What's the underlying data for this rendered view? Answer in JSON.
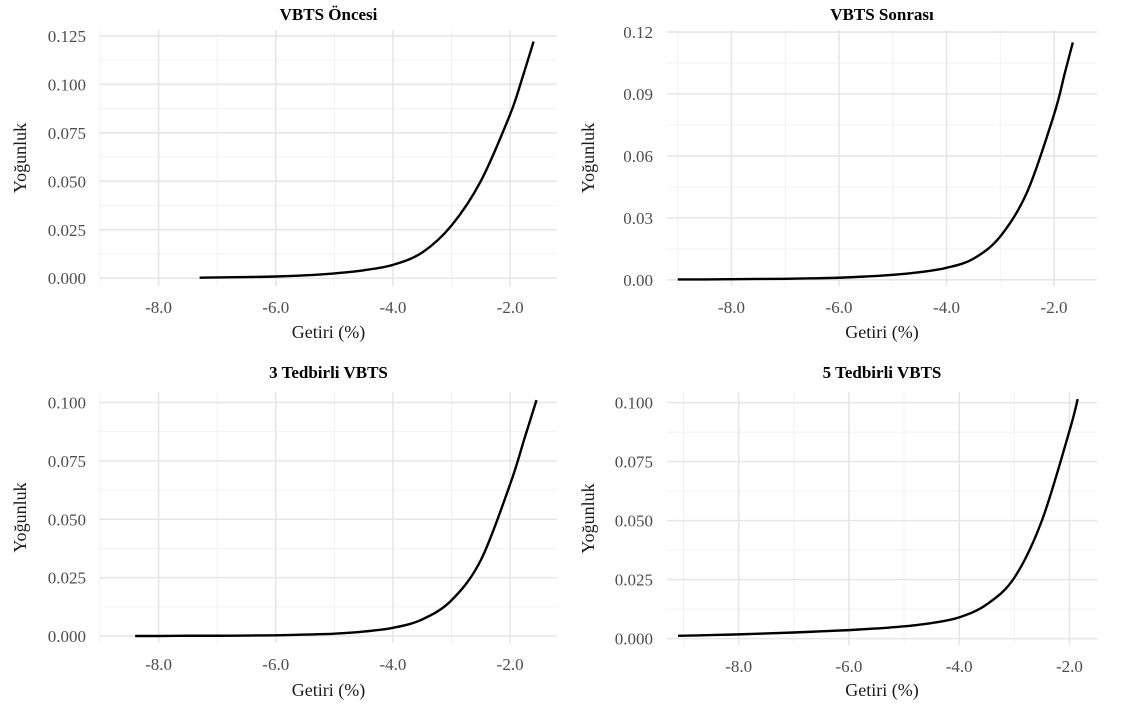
{
  "chart_data": [
    {
      "type": "line",
      "title": "VBTS Öncesi",
      "xlabel": "Getiri (%)",
      "ylabel": "Yoğunluk",
      "xlim": [
        -9.0,
        -1.2
      ],
      "ylim": [
        -0.004,
        0.128
      ],
      "xticks": [
        -8.0,
        -6.0,
        -4.0,
        -2.0
      ],
      "xtick_labels": [
        "-8.0",
        "-6.0",
        "-4.0",
        "-2.0"
      ],
      "yticks": [
        0.0,
        0.025,
        0.05,
        0.075,
        0.1,
        0.125
      ],
      "ytick_labels": [
        "0.000",
        "0.025",
        "0.050",
        "0.075",
        "0.100",
        "0.125"
      ],
      "grid": true,
      "legend": "none",
      "series": [
        {
          "color": "#000000",
          "x": [
            -7.3,
            -7.0,
            -6.5,
            -6.0,
            -5.5,
            -5.0,
            -4.5,
            -4.0,
            -3.5,
            -3.0,
            -2.5,
            -2.0,
            -1.8,
            -1.6
          ],
          "y": [
            0.0003,
            0.0004,
            0.0006,
            0.0009,
            0.0015,
            0.0025,
            0.0041,
            0.0069,
            0.0133,
            0.0272,
            0.0501,
            0.0845,
            0.1025,
            0.122
          ]
        }
      ]
    },
    {
      "type": "line",
      "title": "VBTS Sonrası",
      "xlabel": "Getiri (%)",
      "ylabel": "Yoğunluk",
      "xlim": [
        -9.2,
        -1.2
      ],
      "ylim": [
        -0.003,
        0.121
      ],
      "xticks": [
        -8.0,
        -6.0,
        -4.0,
        -2.0
      ],
      "xtick_labels": [
        "-8.0",
        "-6.0",
        "-4.0",
        "-2.0"
      ],
      "yticks": [
        0.0,
        0.03,
        0.06,
        0.09,
        0.12
      ],
      "ytick_labels": [
        "0.00",
        "0.03",
        "0.06",
        "0.09",
        "0.12"
      ],
      "grid": true,
      "legend": "none",
      "series": [
        {
          "color": "#000000",
          "x": [
            -9.0,
            -8.5,
            -8.0,
            -7.5,
            -7.0,
            -6.5,
            -6.0,
            -5.5,
            -5.0,
            -4.5,
            -4.0,
            -3.5,
            -3.0,
            -2.5,
            -2.0,
            -1.8,
            -1.65
          ],
          "y": [
            0.0002,
            0.0002,
            0.0003,
            0.0004,
            0.0005,
            0.0007,
            0.001,
            0.0016,
            0.0024,
            0.0037,
            0.0058,
            0.0102,
            0.021,
            0.0425,
            0.08,
            0.1,
            0.115
          ]
        }
      ]
    },
    {
      "type": "line",
      "title": "3 Tedbirli VBTS",
      "xlabel": "Getiri (%)",
      "ylabel": "Yoğunluk",
      "xlim": [
        -9.0,
        -1.2
      ],
      "ylim": [
        -0.003,
        0.1045
      ],
      "xticks": [
        -8.0,
        -6.0,
        -4.0,
        -2.0
      ],
      "xtick_labels": [
        "-8.0",
        "-6.0",
        "-4.0",
        "-2.0"
      ],
      "yticks": [
        0.0,
        0.025,
        0.05,
        0.075,
        0.1
      ],
      "ytick_labels": [
        "0.000",
        "0.025",
        "0.050",
        "0.075",
        "0.100"
      ],
      "grid": true,
      "legend": "none",
      "series": [
        {
          "color": "#000000",
          "x": [
            -8.4,
            -8.0,
            -7.5,
            -7.0,
            -6.5,
            -6.0,
            -5.5,
            -5.0,
            -4.5,
            -4.0,
            -3.5,
            -3.0,
            -2.5,
            -2.0,
            -1.75,
            -1.55
          ],
          "y": [
            0.0,
            0.0,
            0.0001,
            0.0001,
            0.0002,
            0.0003,
            0.0006,
            0.001,
            0.0019,
            0.0035,
            0.0071,
            0.0153,
            0.0325,
            0.065,
            0.085,
            0.101
          ]
        }
      ]
    },
    {
      "type": "line",
      "title": "5 Tedbirli VBTS",
      "xlabel": "Getiri (%)",
      "ylabel": "Yoğunluk",
      "xlim": [
        -9.3,
        -1.5
      ],
      "ylim": [
        -0.0027,
        0.1045
      ],
      "xticks": [
        -8.0,
        -6.0,
        -4.0,
        -2.0
      ],
      "xtick_labels": [
        "-8.0",
        "-6.0",
        "-4.0",
        "-2.0"
      ],
      "yticks": [
        0.0,
        0.025,
        0.05,
        0.075,
        0.1
      ],
      "ytick_labels": [
        "0.000",
        "0.025",
        "0.050",
        "0.075",
        "0.100"
      ],
      "grid": true,
      "legend": "none",
      "series": [
        {
          "color": "#000000",
          "x": [
            -9.1,
            -8.5,
            -8.0,
            -7.5,
            -7.0,
            -6.5,
            -6.0,
            -5.5,
            -5.0,
            -4.5,
            -4.0,
            -3.5,
            -3.0,
            -2.5,
            -2.0,
            -1.85
          ],
          "y": [
            0.0012,
            0.0015,
            0.0018,
            0.0022,
            0.0026,
            0.0031,
            0.0036,
            0.0043,
            0.0052,
            0.0066,
            0.009,
            0.0145,
            0.0258,
            0.05,
            0.088,
            0.1015
          ]
        }
      ]
    }
  ]
}
